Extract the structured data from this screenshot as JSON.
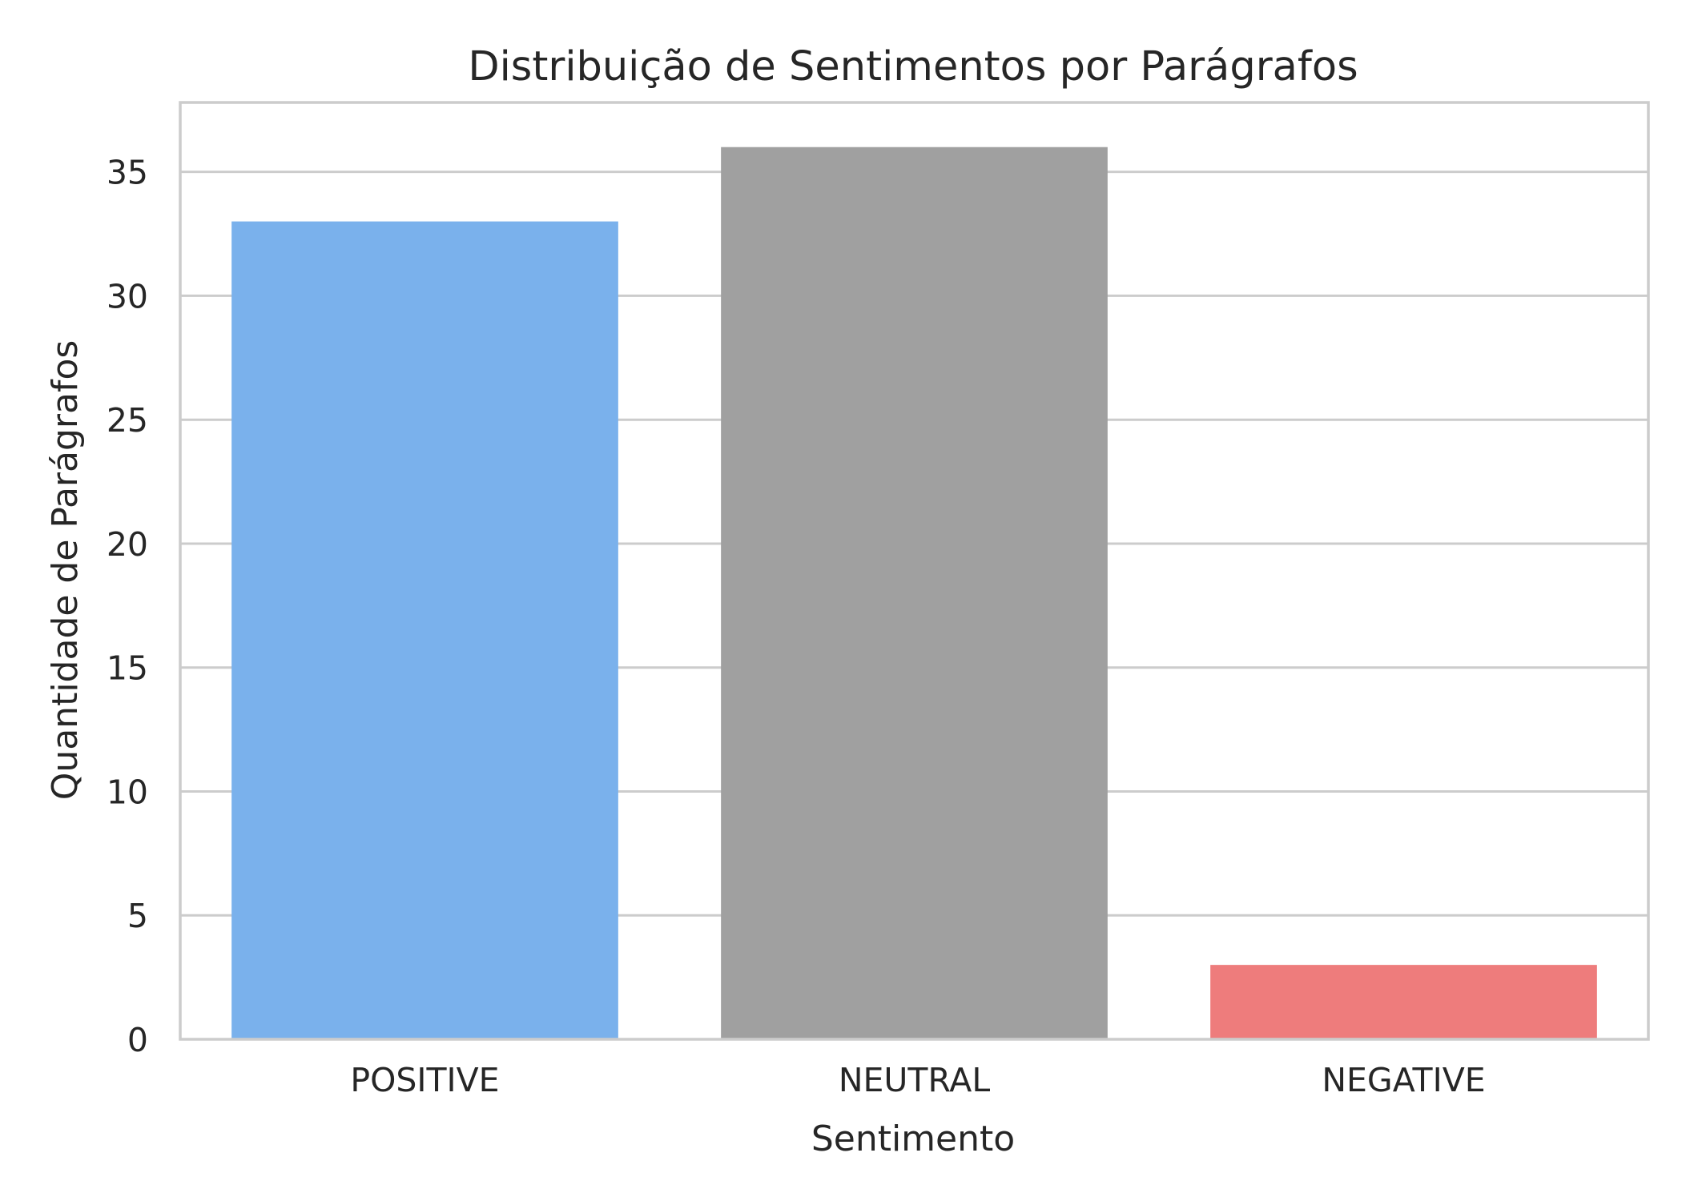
{
  "chart_data": {
    "type": "bar",
    "title": "Distribuição de Sentimentos por Parágrafos",
    "xlabel": "Sentimento",
    "ylabel": "Quantidade de Parágrafos",
    "categories": [
      "POSITIVE",
      "NEUTRAL",
      "NEGATIVE"
    ],
    "values": [
      33,
      36,
      3
    ],
    "colors": [
      "#7ab1ec",
      "#a0a0a0",
      "#ee7c7c"
    ],
    "ylim": [
      0,
      37.8
    ],
    "yticks": [
      0,
      5,
      10,
      15,
      20,
      25,
      30,
      35
    ],
    "grid": "horizontal",
    "legend": "none"
  }
}
